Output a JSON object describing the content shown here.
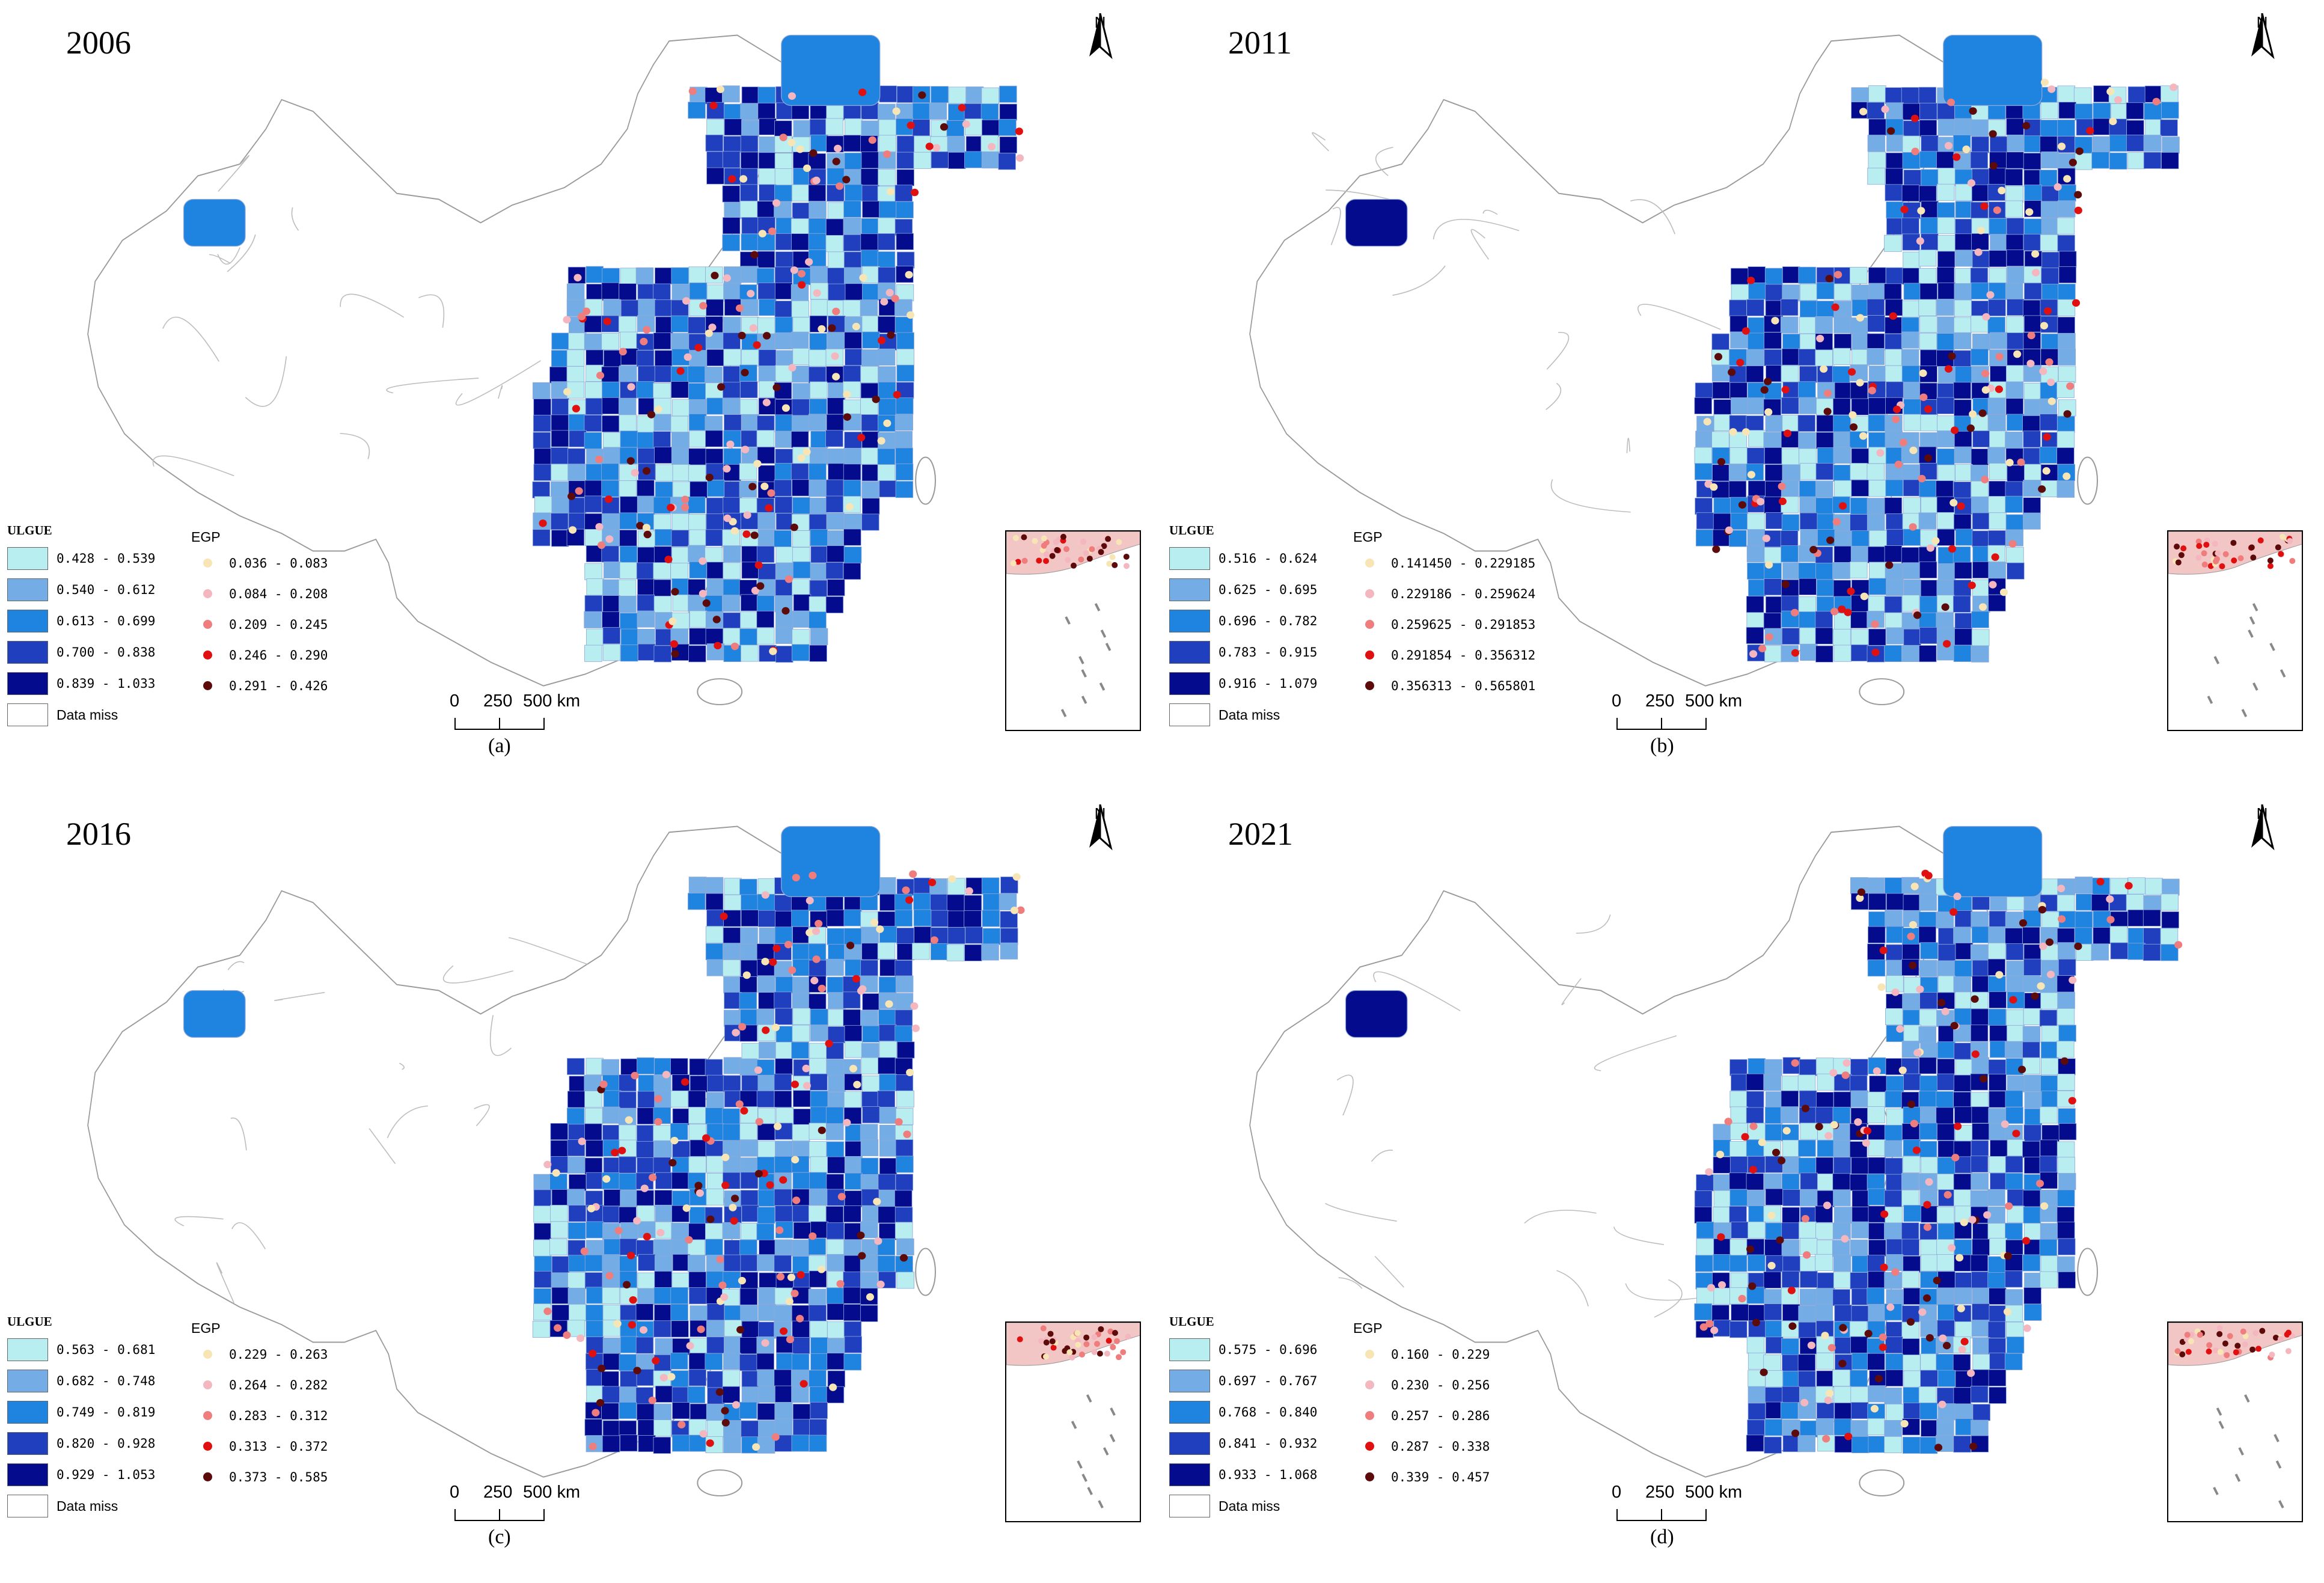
{
  "figure": {
    "north_label": "N",
    "scale": {
      "zero": "0",
      "mid": "250",
      "end": "500 km"
    },
    "ulgue_title": "ULGUE",
    "egp_title": "EGP",
    "data_miss_label": "Data miss",
    "colors": {
      "ulgue": [
        "#b8eef0",
        "#74ade6",
        "#1f83e0",
        "#1f3fbf",
        "#040b8c"
      ],
      "egp": [
        "#f8e5b5",
        "#f4b7bf",
        "#ef7d7d",
        "#e11010",
        "#5c0a0a"
      ],
      "data_miss": "#ffffff",
      "boundary": "#9a9a9a"
    }
  },
  "panels": [
    {
      "year": "2006",
      "caption": "(a)",
      "ulgue_classes": [
        "0.428 - 0.539",
        "0.540 - 0.612",
        "0.613 - 0.699",
        "0.700 - 0.838",
        "0.839 - 1.033"
      ],
      "egp_classes": [
        "0.036 - 0.083",
        "0.084 - 0.208",
        "0.209 - 0.245",
        "0.246 - 0.290",
        "0.291 - 0.426"
      ]
    },
    {
      "year": "2011",
      "caption": "(b)",
      "ulgue_classes": [
        "0.516 - 0.624",
        "0.625 - 0.695",
        "0.696 - 0.782",
        "0.783 - 0.915",
        "0.916 - 1.079"
      ],
      "egp_classes": [
        "0.141450 - 0.229185",
        "0.229186 - 0.259624",
        "0.259625 - 0.291853",
        "0.291854 - 0.356312",
        "0.356313 - 0.565801"
      ]
    },
    {
      "year": "2016",
      "caption": "(c)",
      "ulgue_classes": [
        "0.563 - 0.681",
        "0.682 - 0.748",
        "0.749 - 0.819",
        "0.820 - 0.928",
        "0.929 - 1.053"
      ],
      "egp_classes": [
        "0.229 - 0.263",
        "0.264 - 0.282",
        "0.283 - 0.312",
        "0.313 - 0.372",
        "0.373 - 0.585"
      ]
    },
    {
      "year": "2021",
      "caption": "(d)",
      "ulgue_classes": [
        "0.575 - 0.696",
        "0.697 - 0.767",
        "0.768 - 0.840",
        "0.841 - 0.932",
        "0.933 - 1.068"
      ],
      "egp_classes": [
        "0.160 - 0.229",
        "0.230 - 0.256",
        "0.257 - 0.286",
        "0.287 - 0.338",
        "0.339 - 0.457"
      ]
    }
  ]
}
